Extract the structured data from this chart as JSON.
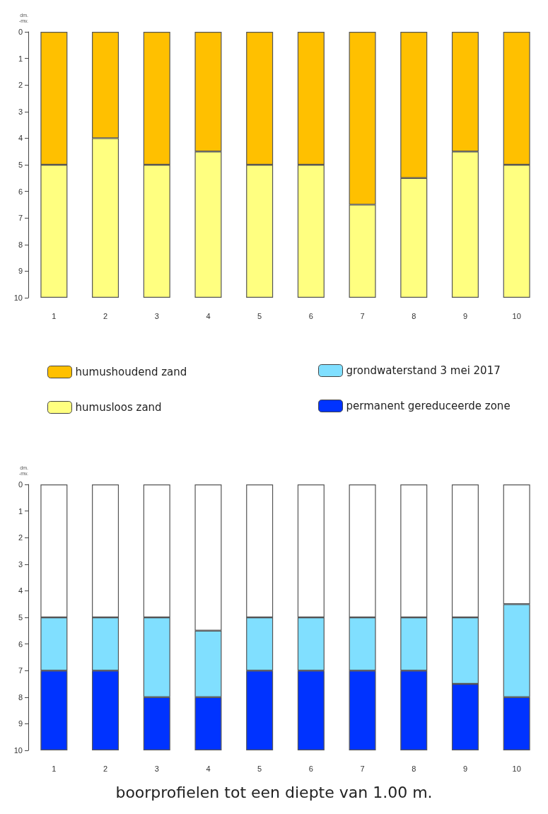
{
  "chart_data": [
    {
      "type": "bar",
      "stacked": true,
      "ylabel": "dm.\n-mv.",
      "categories": [
        "1",
        "2",
        "3",
        "4",
        "5",
        "6",
        "7",
        "8",
        "9",
        "10"
      ],
      "ylim": [
        10,
        0
      ],
      "yticks": [
        0,
        1,
        2,
        3,
        4,
        5,
        6,
        7,
        8,
        9,
        10
      ],
      "grid": false,
      "legend": "bottom",
      "series": [
        {
          "name": "humushoudend zand",
          "color": "#ffc000",
          "values": [
            5,
            4,
            5,
            4.5,
            5,
            5,
            6.5,
            5.5,
            4.5,
            5
          ]
        },
        {
          "name": "humusloos zand",
          "color": "#ffff80",
          "values": [
            5,
            6,
            5,
            5.5,
            5,
            5,
            3.5,
            4.5,
            5.5,
            5
          ]
        }
      ]
    },
    {
      "type": "bar",
      "stacked": true,
      "ylabel": "dm.\n-mv.",
      "categories": [
        "1",
        "2",
        "3",
        "4",
        "5",
        "6",
        "7",
        "8",
        "9",
        "10"
      ],
      "ylim": [
        10,
        0
      ],
      "yticks": [
        0,
        1,
        2,
        3,
        4,
        5,
        6,
        7,
        8,
        9,
        10
      ],
      "grid": false,
      "legend": "top",
      "annotations": [
        "boorprofielen tot een diepte van 1.00 m."
      ],
      "series": [
        {
          "color": "#ffffff",
          "values": [
            5,
            5,
            5,
            5.5,
            5,
            5,
            5,
            5,
            5,
            4.5
          ]
        },
        {
          "name": "grondwaterstand 3 mei 2017",
          "color": "#80dfff",
          "values": [
            2,
            2,
            3,
            2.5,
            2,
            2,
            2,
            2,
            2.5,
            3.5
          ]
        },
        {
          "name": "permanent gereduceerde zone",
          "color": "#0033ff",
          "values": [
            3,
            3,
            2,
            2,
            3,
            3,
            3,
            3,
            2.5,
            2
          ]
        }
      ]
    }
  ]
}
